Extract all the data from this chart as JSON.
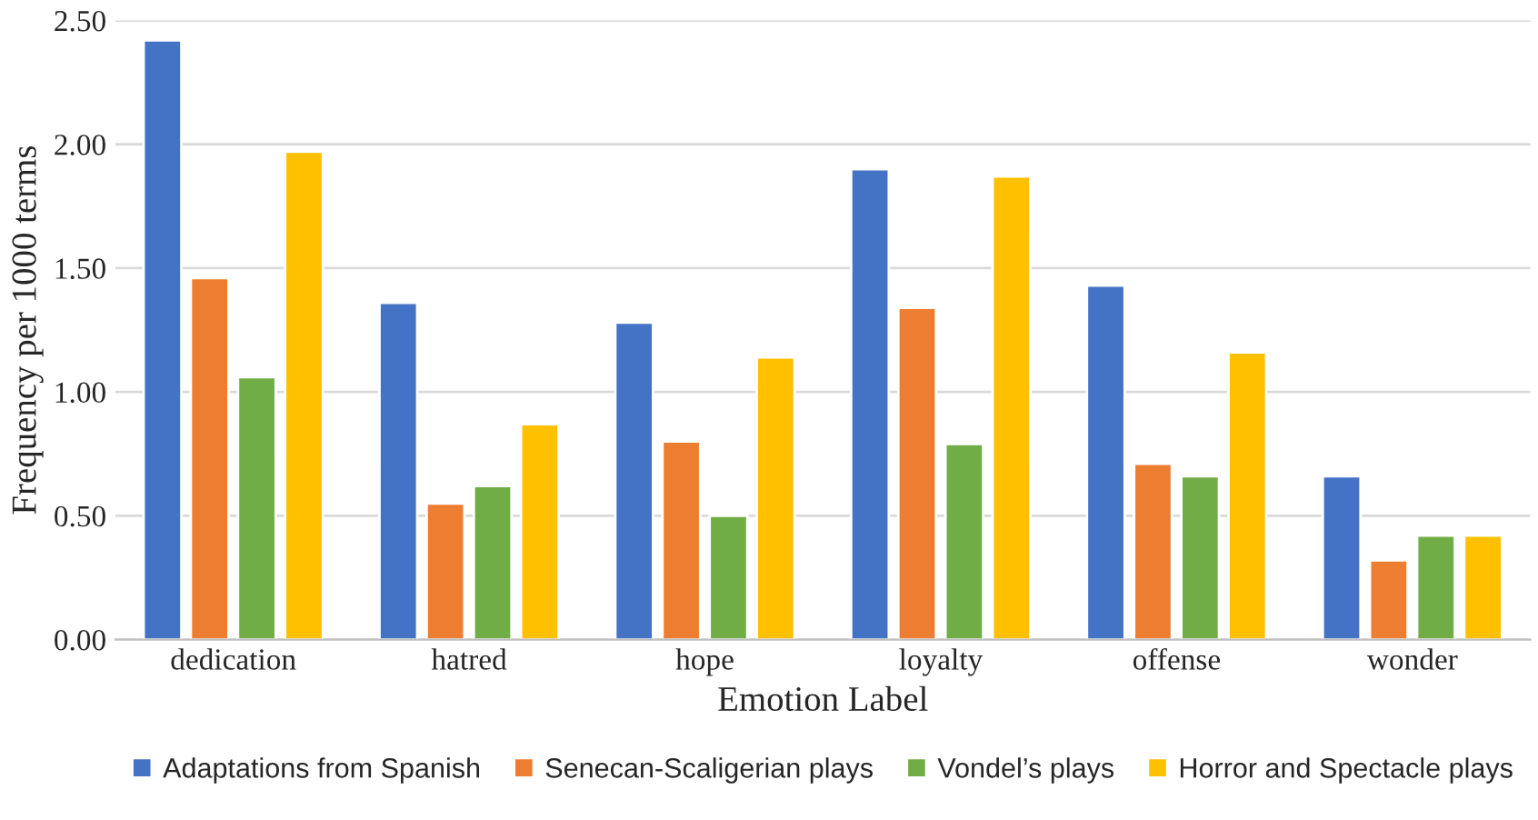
{
  "chart_data": {
    "type": "bar",
    "xlabel": "Emotion Label",
    "ylabel": "Frequency per 1000 terms",
    "categories": [
      "dedication",
      "hatred",
      "hope",
      "loyalty",
      "offense",
      "wonder"
    ],
    "series": [
      {
        "name": "Adaptations from Spanish",
        "color": "#4472c4",
        "values": [
          2.42,
          1.36,
          1.28,
          1.9,
          1.43,
          0.66
        ]
      },
      {
        "name": "Senecan-Scaligerian plays",
        "color": "#ed7d31",
        "values": [
          1.46,
          0.55,
          0.8,
          1.34,
          0.71,
          0.32
        ]
      },
      {
        "name": "Vondel’s plays",
        "color": "#70ad47",
        "values": [
          1.06,
          0.62,
          0.5,
          0.79,
          0.66,
          0.42
        ]
      },
      {
        "name": "Horror and Spectacle plays",
        "color": "#ffc000",
        "values": [
          1.97,
          0.87,
          1.14,
          1.87,
          1.16,
          0.42
        ]
      }
    ],
    "ylim": [
      0,
      2.5
    ],
    "yticks": [
      {
        "value": 0,
        "label": "0.00"
      },
      {
        "value": 0.5,
        "label": "0.50"
      },
      {
        "value": 1,
        "label": "1.00"
      },
      {
        "value": 1.5,
        "label": "1.50"
      },
      {
        "value": 2,
        "label": "2.00"
      },
      {
        "value": 2.5,
        "label": "2.50"
      }
    ],
    "grid": "y",
    "legend": "bottom"
  }
}
